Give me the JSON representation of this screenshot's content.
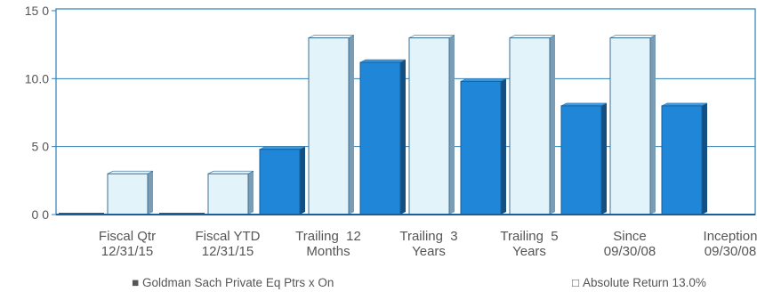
{
  "chart_data": {
    "type": "bar",
    "categories": [
      [
        "Fiscal Qtr",
        "12/31/15"
      ],
      [
        "Fiscal YTD",
        "12/31/15"
      ],
      [
        "Trailing  12",
        "Months"
      ],
      [
        "Trailing  3",
        "Years"
      ],
      [
        "Trailing  5",
        "Years"
      ],
      [
        "Since",
        "09/30/08"
      ],
      [
        "Inception",
        "09/30/08"
      ]
    ],
    "series": [
      {
        "name": "Goldman Sach Private Eq Ptrs x On",
        "legend_marker": "■",
        "color": "#1f86d8",
        "values": [
          0.0,
          0.0,
          4.8,
          11.2,
          9.8,
          8.0,
          8.0
        ]
      },
      {
        "name": "Absolute Return 13.0%",
        "legend_marker": "□",
        "color": "#e3f3fa",
        "values": [
          3.0,
          3.0,
          13.0,
          13.0,
          13.0,
          13.0,
          null
        ]
      }
    ],
    "y_ticks": [
      {
        "value": 0,
        "label": "0 0"
      },
      {
        "value": 5,
        "label": "5 0"
      },
      {
        "value": 10,
        "label": "10.0"
      },
      {
        "value": 15,
        "label": "15 0"
      }
    ],
    "ylim": [
      0,
      15
    ],
    "grid": true,
    "legend_position": "bottom"
  }
}
